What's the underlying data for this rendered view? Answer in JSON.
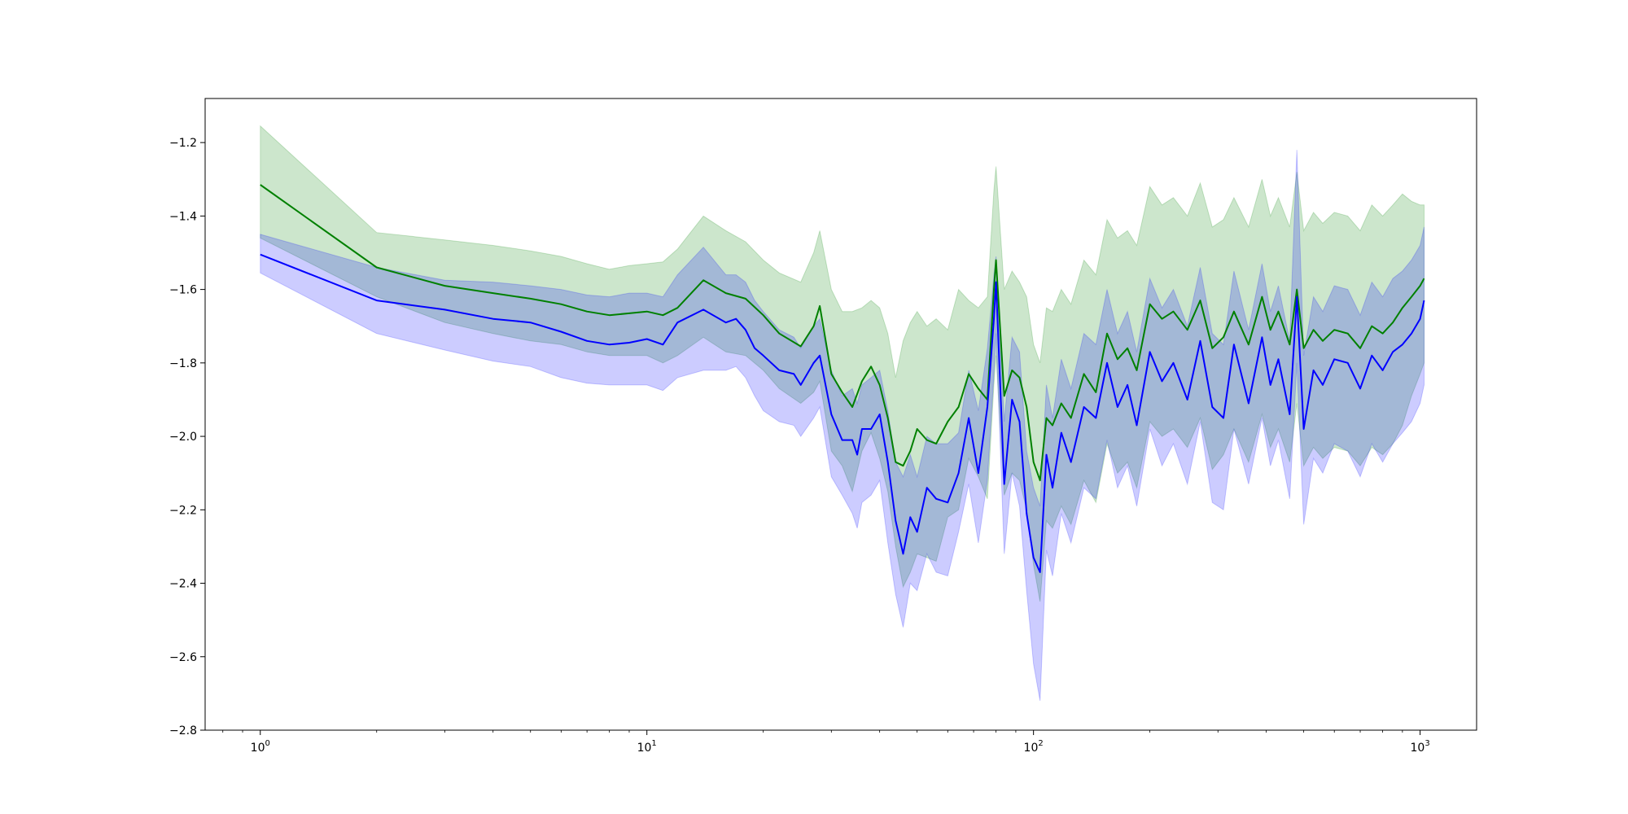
{
  "chart_data": {
    "type": "line",
    "title": "",
    "xlabel": "",
    "ylabel": "",
    "xscale": "log",
    "xlim": [
      0.72,
      1400
    ],
    "ylim": [
      -2.8,
      -1.08
    ],
    "grid": false,
    "legend": "none",
    "x_ticks": [
      {
        "base": "10",
        "exp": "0",
        "value": 1
      },
      {
        "base": "10",
        "exp": "1",
        "value": 10
      },
      {
        "base": "10",
        "exp": "2",
        "value": 100
      },
      {
        "base": "10",
        "exp": "3",
        "value": 1000
      }
    ],
    "y_ticks": [
      {
        "label": "−1.2",
        "value": -1.2
      },
      {
        "label": "−1.4",
        "value": -1.4
      },
      {
        "label": "−1.6",
        "value": -1.6
      },
      {
        "label": "−1.8",
        "value": -1.8
      },
      {
        "label": "−2.0",
        "value": -2.0
      },
      {
        "label": "−2.2",
        "value": -2.2
      },
      {
        "label": "−2.4",
        "value": -2.4
      },
      {
        "label": "−2.6",
        "value": -2.6
      },
      {
        "label": "−2.8",
        "value": -2.8
      }
    ],
    "series": [
      {
        "color": "#008000",
        "band_color": "#008000",
        "band_opacity": 0.2,
        "x": [
          1,
          2,
          3,
          4,
          5,
          6,
          7,
          8,
          9,
          10,
          11,
          12,
          14,
          16,
          18,
          20,
          22,
          25,
          27,
          28,
          30,
          32,
          34,
          36,
          38,
          40,
          42,
          44,
          46,
          48,
          50,
          53,
          56,
          60,
          64,
          68,
          72,
          76,
          79,
          80,
          84,
          88,
          92,
          96,
          100,
          104,
          108,
          112,
          118,
          125,
          135,
          145,
          155,
          165,
          175,
          185,
          200,
          215,
          230,
          250,
          270,
          290,
          310,
          330,
          360,
          390,
          410,
          430,
          460,
          480,
          500,
          530,
          560,
          600,
          650,
          700,
          750,
          800,
          850,
          900,
          950,
          1000,
          1024
        ],
        "y": [
          -1.315,
          -1.54,
          -1.59,
          -1.61,
          -1.625,
          -1.64,
          -1.66,
          -1.67,
          -1.665,
          -1.66,
          -1.67,
          -1.65,
          -1.575,
          -1.61,
          -1.625,
          -1.67,
          -1.72,
          -1.755,
          -1.7,
          -1.645,
          -1.83,
          -1.88,
          -1.92,
          -1.85,
          -1.81,
          -1.86,
          -1.95,
          -2.07,
          -2.08,
          -2.04,
          -1.98,
          -2.01,
          -2.02,
          -1.96,
          -1.92,
          -1.83,
          -1.87,
          -1.9,
          -1.6,
          -1.52,
          -1.89,
          -1.82,
          -1.84,
          -1.92,
          -2.07,
          -2.12,
          -1.95,
          -1.97,
          -1.91,
          -1.95,
          -1.83,
          -1.88,
          -1.72,
          -1.79,
          -1.76,
          -1.82,
          -1.64,
          -1.68,
          -1.66,
          -1.71,
          -1.63,
          -1.76,
          -1.73,
          -1.66,
          -1.75,
          -1.62,
          -1.71,
          -1.66,
          -1.75,
          -1.6,
          -1.76,
          -1.71,
          -1.74,
          -1.71,
          -1.72,
          -1.76,
          -1.7,
          -1.72,
          -1.69,
          -1.65,
          -1.62,
          -1.59,
          -1.57
        ],
        "upper": [
          -1.155,
          -1.445,
          -1.465,
          -1.48,
          -1.495,
          -1.51,
          -1.53,
          -1.545,
          -1.535,
          -1.53,
          -1.525,
          -1.49,
          -1.4,
          -1.44,
          -1.47,
          -1.52,
          -1.555,
          -1.58,
          -1.5,
          -1.44,
          -1.6,
          -1.66,
          -1.66,
          -1.65,
          -1.63,
          -1.65,
          -1.72,
          -1.84,
          -1.74,
          -1.69,
          -1.66,
          -1.7,
          -1.68,
          -1.71,
          -1.6,
          -1.63,
          -1.65,
          -1.62,
          -1.33,
          -1.265,
          -1.6,
          -1.55,
          -1.58,
          -1.62,
          -1.75,
          -1.8,
          -1.65,
          -1.66,
          -1.6,
          -1.64,
          -1.52,
          -1.56,
          -1.41,
          -1.46,
          -1.44,
          -1.48,
          -1.32,
          -1.37,
          -1.35,
          -1.4,
          -1.31,
          -1.43,
          -1.41,
          -1.35,
          -1.43,
          -1.3,
          -1.4,
          -1.35,
          -1.43,
          -1.28,
          -1.44,
          -1.39,
          -1.42,
          -1.39,
          -1.4,
          -1.44,
          -1.37,
          -1.4,
          -1.37,
          -1.34,
          -1.36,
          -1.37,
          -1.37
        ],
        "lower": [
          -1.46,
          -1.62,
          -1.69,
          -1.72,
          -1.74,
          -1.75,
          -1.77,
          -1.78,
          -1.78,
          -1.78,
          -1.8,
          -1.78,
          -1.73,
          -1.77,
          -1.78,
          -1.82,
          -1.87,
          -1.91,
          -1.88,
          -1.85,
          -2.04,
          -2.08,
          -2.15,
          -2.04,
          -1.99,
          -2.06,
          -2.15,
          -2.3,
          -2.41,
          -2.37,
          -2.32,
          -2.33,
          -2.34,
          -2.22,
          -2.2,
          -2.06,
          -2.11,
          -2.17,
          -1.86,
          -1.78,
          -2.16,
          -2.1,
          -2.12,
          -2.2,
          -2.35,
          -2.45,
          -2.23,
          -2.25,
          -2.19,
          -2.24,
          -2.12,
          -2.18,
          -2.02,
          -2.1,
          -2.07,
          -2.14,
          -1.96,
          -2.0,
          -1.98,
          -2.03,
          -1.95,
          -2.09,
          -2.05,
          -1.98,
          -2.07,
          -1.94,
          -2.03,
          -1.98,
          -2.07,
          -1.91,
          -2.08,
          -2.03,
          -2.06,
          -2.03,
          -2.04,
          -2.08,
          -2.03,
          -2.05,
          -2.02,
          -1.97,
          -1.89,
          -1.83,
          -1.8
        ]
      },
      {
        "color": "#0000ff",
        "band_color": "#0000ff",
        "band_opacity": 0.2,
        "x": [
          1,
          2,
          3,
          4,
          5,
          6,
          7,
          8,
          9,
          10,
          11,
          12,
          14,
          16,
          17,
          18,
          19,
          20,
          22,
          24,
          25,
          27,
          28,
          30,
          32,
          34,
          35,
          36,
          38,
          40,
          42,
          44,
          46,
          48,
          50,
          53,
          56,
          60,
          64,
          68,
          72,
          76,
          79,
          80,
          84,
          88,
          92,
          96,
          100,
          104,
          108,
          112,
          118,
          125,
          135,
          145,
          155,
          165,
          175,
          185,
          200,
          215,
          230,
          250,
          270,
          290,
          310,
          330,
          360,
          390,
          410,
          430,
          460,
          480,
          500,
          530,
          560,
          600,
          650,
          700,
          750,
          800,
          850,
          900,
          950,
          1000,
          1024
        ],
        "y": [
          -1.505,
          -1.63,
          -1.655,
          -1.68,
          -1.69,
          -1.715,
          -1.74,
          -1.75,
          -1.745,
          -1.735,
          -1.75,
          -1.69,
          -1.655,
          -1.69,
          -1.68,
          -1.71,
          -1.76,
          -1.78,
          -1.82,
          -1.83,
          -1.86,
          -1.8,
          -1.78,
          -1.94,
          -2.01,
          -2.01,
          -2.05,
          -1.98,
          -1.98,
          -1.94,
          -2.07,
          -2.23,
          -2.32,
          -2.22,
          -2.26,
          -2.14,
          -2.17,
          -2.18,
          -2.1,
          -1.95,
          -2.1,
          -1.92,
          -1.68,
          -1.58,
          -2.13,
          -1.9,
          -1.96,
          -2.21,
          -2.33,
          -2.37,
          -2.05,
          -2.14,
          -1.99,
          -2.07,
          -1.92,
          -1.95,
          -1.8,
          -1.92,
          -1.86,
          -1.97,
          -1.77,
          -1.85,
          -1.8,
          -1.9,
          -1.74,
          -1.92,
          -1.95,
          -1.75,
          -1.91,
          -1.73,
          -1.86,
          -1.79,
          -1.94,
          -1.62,
          -1.98,
          -1.82,
          -1.86,
          -1.79,
          -1.8,
          -1.87,
          -1.78,
          -1.82,
          -1.77,
          -1.75,
          -1.72,
          -1.68,
          -1.63
        ],
        "upper": [
          -1.45,
          -1.54,
          -1.575,
          -1.58,
          -1.59,
          -1.6,
          -1.615,
          -1.62,
          -1.61,
          -1.61,
          -1.62,
          -1.56,
          -1.485,
          -1.56,
          -1.56,
          -1.58,
          -1.63,
          -1.66,
          -1.71,
          -1.73,
          -1.76,
          -1.7,
          -1.68,
          -1.82,
          -1.89,
          -1.87,
          -1.91,
          -1.86,
          -1.84,
          -1.82,
          -1.93,
          -2.07,
          -2.11,
          -2.05,
          -2.11,
          -2.0,
          -2.02,
          -2.02,
          -1.99,
          -1.82,
          -1.93,
          -1.76,
          -1.56,
          -1.51,
          -1.96,
          -1.73,
          -1.77,
          -2.04,
          -2.14,
          -2.19,
          -1.86,
          -1.95,
          -1.79,
          -1.87,
          -1.72,
          -1.75,
          -1.6,
          -1.72,
          -1.66,
          -1.77,
          -1.57,
          -1.65,
          -1.6,
          -1.7,
          -1.54,
          -1.72,
          -1.75,
          -1.55,
          -1.71,
          -1.53,
          -1.66,
          -1.59,
          -1.74,
          -1.22,
          -1.78,
          -1.62,
          -1.66,
          -1.59,
          -1.6,
          -1.67,
          -1.58,
          -1.62,
          -1.57,
          -1.55,
          -1.52,
          -1.48,
          -1.43
        ],
        "lower": [
          -1.555,
          -1.72,
          -1.765,
          -1.795,
          -1.81,
          -1.84,
          -1.855,
          -1.86,
          -1.86,
          -1.86,
          -1.875,
          -1.84,
          -1.82,
          -1.82,
          -1.81,
          -1.84,
          -1.89,
          -1.93,
          -1.96,
          -1.97,
          -2.0,
          -1.95,
          -1.92,
          -2.11,
          -2.16,
          -2.21,
          -2.25,
          -2.18,
          -2.16,
          -2.12,
          -2.29,
          -2.43,
          -2.52,
          -2.4,
          -2.42,
          -2.32,
          -2.37,
          -2.38,
          -2.26,
          -2.13,
          -2.29,
          -2.12,
          -1.83,
          -1.72,
          -2.32,
          -2.1,
          -2.19,
          -2.42,
          -2.62,
          -2.72,
          -2.31,
          -2.38,
          -2.21,
          -2.29,
          -2.14,
          -2.17,
          -2.01,
          -2.14,
          -2.08,
          -2.19,
          -1.98,
          -2.08,
          -2.02,
          -2.13,
          -1.96,
          -2.18,
          -2.2,
          -1.98,
          -2.13,
          -1.95,
          -2.08,
          -2.01,
          -2.17,
          -1.8,
          -2.24,
          -2.06,
          -2.1,
          -2.02,
          -2.04,
          -2.11,
          -2.02,
          -2.07,
          -2.02,
          -1.99,
          -1.96,
          -1.91,
          -1.86
        ]
      }
    ]
  }
}
